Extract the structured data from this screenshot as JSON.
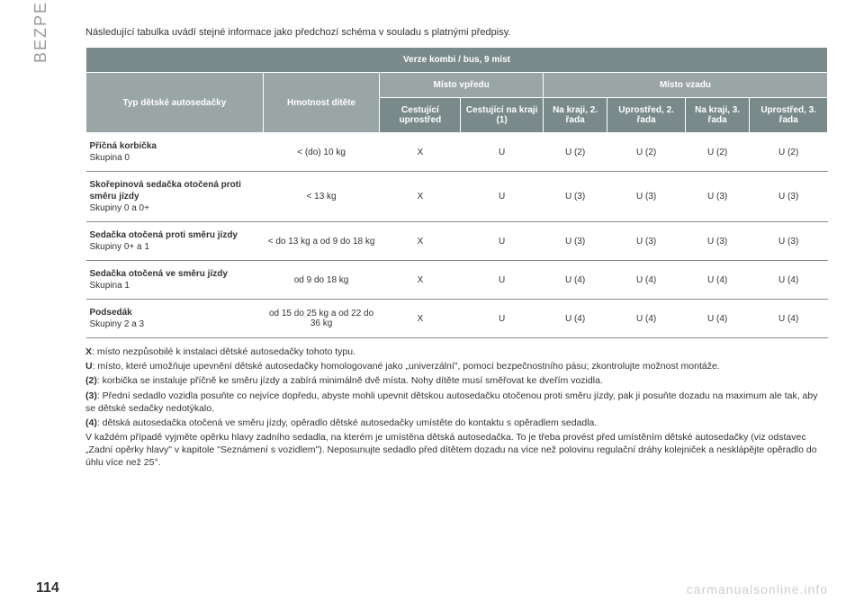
{
  "sideLabel": "BEZPEČNOST",
  "intro": "Následující tabulka uvádí stejné informace jako předchozí schéma v souladu s platnými předpisy.",
  "table": {
    "headerMain": "Verze kombi / bus, 9 míst",
    "col1": "Typ dětské autosedačky",
    "col2": "Hmotnost dítěte",
    "groupFront": "Místo vpředu",
    "groupRear": "Místo vzadu",
    "subFront1": "Cestující uprostřed",
    "subFront2": "Cestující na kraji (1)",
    "subRear1": "Na kraji, 2. řada",
    "subRear2": "Uprostřed, 2. řada",
    "subRear3": "Na kraji, 3. řada",
    "subRear4": "Uprostřed, 3. řada",
    "rows": [
      {
        "label": "<strong>Příčná korbička</strong><br>Skupina 0",
        "weight": "< (do) 10 kg",
        "c": [
          "X",
          "U",
          "U (2)",
          "U (2)",
          "U (2)",
          "U (2)"
        ]
      },
      {
        "label": "<strong>Skořepinová sedačka otočená proti směru jízdy</strong><br>Skupiny 0 a 0+",
        "weight": "< 13 kg",
        "c": [
          "X",
          "U",
          "U (3)",
          "U (3)",
          "U (3)",
          "U (3)"
        ]
      },
      {
        "label": "<strong>Sedačka otočená proti směru jízdy</strong><br>Skupiny 0+ a 1",
        "weight": "< do 13 kg a od 9 do 18 kg",
        "c": [
          "X",
          "U",
          "U (3)",
          "U (3)",
          "U (3)",
          "U (3)"
        ]
      },
      {
        "label": "<strong>Sedačka otočená ve směru jízdy</strong><br>Skupina 1",
        "weight": "od 9 do 18 kg",
        "c": [
          "X",
          "U",
          "U (4)",
          "U (4)",
          "U (4)",
          "U (4)"
        ]
      },
      {
        "label": "<strong>Podsedák</strong><br>Skupiny 2 a 3",
        "weight": "od 15 do 25 kg a od 22 do 36 kg",
        "c": [
          "X",
          "U",
          "U (4)",
          "U (4)",
          "U (4)",
          "U (4)"
        ]
      }
    ]
  },
  "notes": [
    "<strong>X</strong>: místo nezpůsobilé k instalaci dětské autosedačky tohoto typu.",
    "<strong>U</strong>: místo, které umožňuje upevnění dětské autosedačky homologované jako „univerzální\", pomocí bezpečnostního pásu; zkontrolujte možnost montáže.",
    "<strong>(2)</strong>: korbička se instaluje příčně ke směru jízdy a zabírá minimálně dvě místa. Nohy dítěte musí směřovat ke dveřím vozidla.",
    "<strong>(3)</strong>: Přední sedadlo vozidla posuňte co nejvíce dopředu, abyste mohli upevnit dětskou autosedačku otočenou proti směru jízdy, pak ji posuňte dozadu na maximum ale tak, aby se dětské sedačky nedotýkalo.",
    "<strong>(4)</strong>: dětská autosedačka otočená ve směru jízdy, opěradlo dětské autosedačky umístěte do kontaktu s opěradlem sedadla.",
    "V každém případě vyjměte opěrku hlavy zadního sedadla, na kterém je umístěna dětská autosedačka. To je třeba provést před umístěním dětské autosedačky (viz odstavec „Zadní opěrky hlavy\" v kapitole \"Seznámení s vozidlem\"). Neposunujte sedadlo před dítětem dozadu na více než polovinu regulační dráhy kolejniček a nesklápějte opěradlo do úhlu více než 25°."
  ],
  "pageNum": "114",
  "watermark": "carmanualsonline.info"
}
